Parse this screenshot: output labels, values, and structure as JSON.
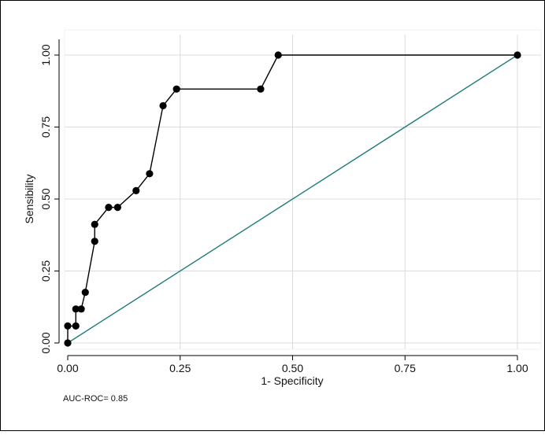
{
  "chart_data": {
    "type": "line",
    "title": "",
    "xlabel": "1- Specificity",
    "ylabel": "Sensibility",
    "xlim": [
      0,
      1
    ],
    "ylim": [
      0,
      1
    ],
    "x_ticks": [
      "0.00",
      "0.25",
      "0.50",
      "0.75",
      "1.00"
    ],
    "y_ticks": [
      "0.00",
      "0.25",
      "0.50",
      "0.75",
      "1.00"
    ],
    "grid": true,
    "series": [
      {
        "values": [
          {
            "x": 0.0,
            "y": 0.0
          },
          {
            "x": 0.0,
            "y": 0.059
          },
          {
            "x": 0.018,
            "y": 0.059
          },
          {
            "x": 0.018,
            "y": 0.118
          },
          {
            "x": 0.03,
            "y": 0.118
          },
          {
            "x": 0.039,
            "y": 0.176
          },
          {
            "x": 0.06,
            "y": 0.353
          },
          {
            "x": 0.06,
            "y": 0.412
          },
          {
            "x": 0.091,
            "y": 0.471
          },
          {
            "x": 0.111,
            "y": 0.471
          },
          {
            "x": 0.152,
            "y": 0.529
          },
          {
            "x": 0.182,
            "y": 0.588
          },
          {
            "x": 0.212,
            "y": 0.824
          },
          {
            "x": 0.242,
            "y": 0.882
          },
          {
            "x": 0.429,
            "y": 0.882
          },
          {
            "x": 0.468,
            "y": 1.0
          },
          {
            "x": 1.0,
            "y": 1.0
          }
        ],
        "color": "#000000"
      },
      {
        "values": [
          {
            "x": 0,
            "y": 0
          },
          {
            "x": 1,
            "y": 1
          }
        ],
        "color": "#1f7a78"
      }
    ],
    "annotations": [
      "AUC-ROC= 0.85"
    ]
  }
}
